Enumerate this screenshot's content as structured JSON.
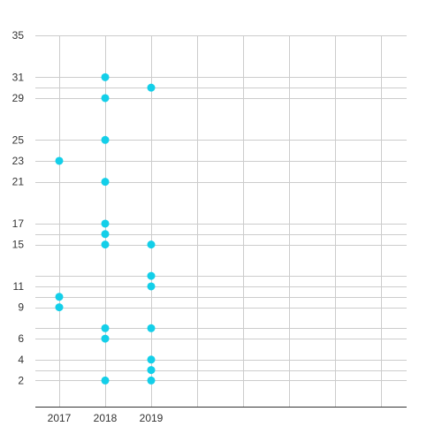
{
  "chart_data": {
    "type": "scatter",
    "title": "",
    "xlabel": "",
    "ylabel": "",
    "x_categories": [
      "2017",
      "2018",
      "2019"
    ],
    "x_gridlines": 8,
    "y_ticks": [
      2,
      4,
      6,
      9,
      11,
      15,
      17,
      21,
      23,
      25,
      29,
      31,
      35
    ],
    "y_gridlines": [
      2,
      3,
      4,
      6,
      7,
      9,
      10,
      11,
      12,
      15,
      16,
      17,
      21,
      23,
      25,
      29,
      30,
      31,
      35
    ],
    "ylim": [
      -0.5,
      35
    ],
    "grid": true,
    "legend": "none",
    "series": [
      {
        "color": "#13cfe9",
        "points": [
          {
            "x": "2017",
            "y": 23
          },
          {
            "x": "2017",
            "y": 10
          },
          {
            "x": "2017",
            "y": 9
          },
          {
            "x": "2018",
            "y": 31
          },
          {
            "x": "2018",
            "y": 29
          },
          {
            "x": "2018",
            "y": 25
          },
          {
            "x": "2018",
            "y": 21
          },
          {
            "x": "2018",
            "y": 17
          },
          {
            "x": "2018",
            "y": 16
          },
          {
            "x": "2018",
            "y": 15
          },
          {
            "x": "2018",
            "y": 7
          },
          {
            "x": "2018",
            "y": 6
          },
          {
            "x": "2018",
            "y": 2
          },
          {
            "x": "2019",
            "y": 30
          },
          {
            "x": "2019",
            "y": 15
          },
          {
            "x": "2019",
            "y": 12
          },
          {
            "x": "2019",
            "y": 11
          },
          {
            "x": "2019",
            "y": 7
          },
          {
            "x": "2019",
            "y": 4
          },
          {
            "x": "2019",
            "y": 3
          },
          {
            "x": "2019",
            "y": 2
          }
        ]
      }
    ]
  }
}
